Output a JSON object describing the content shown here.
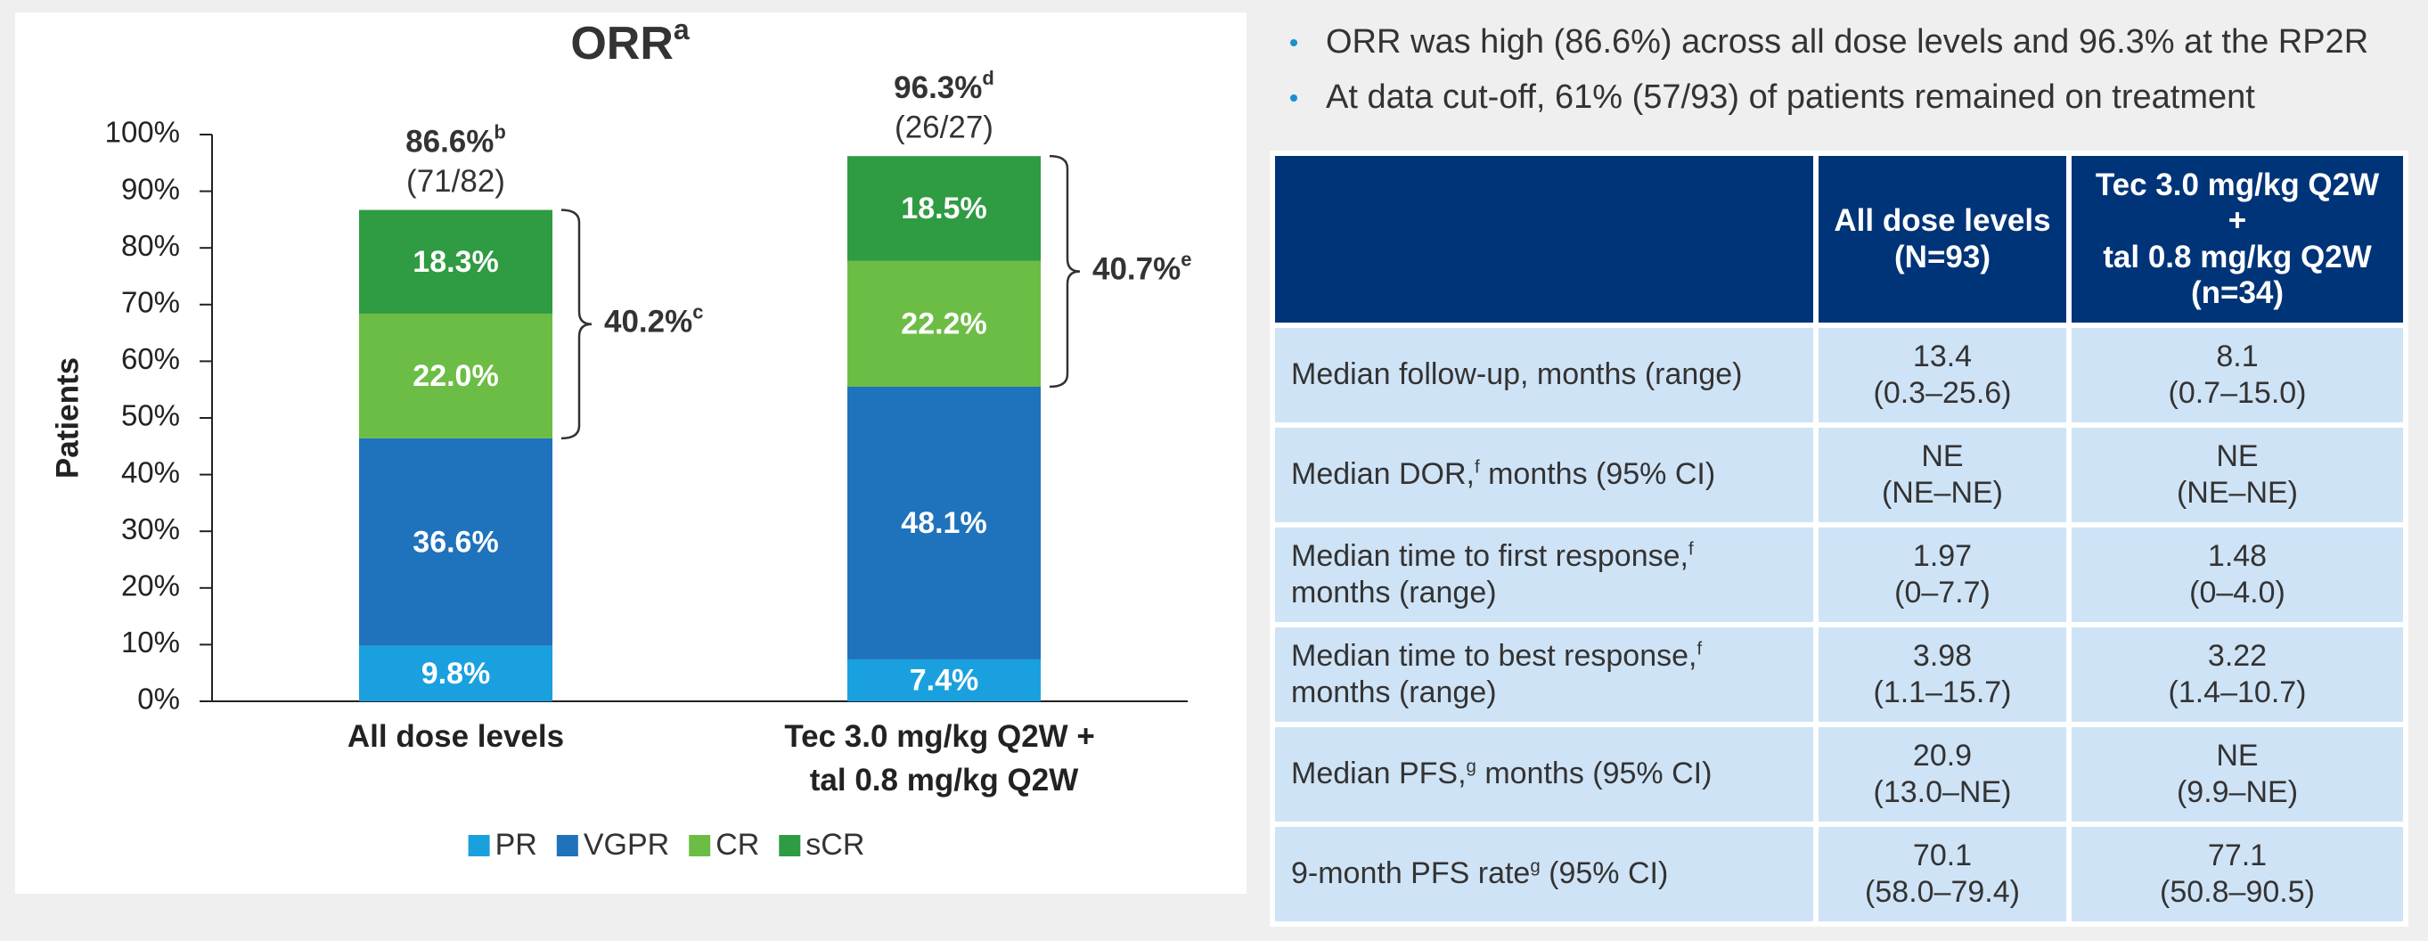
{
  "chart_data": {
    "type": "stacked_bar",
    "title": "ORR",
    "title_note": "a",
    "ylabel": "Patients",
    "categories": [
      "All dose levels",
      "Tec 3.0 mg/kg Q2W +\ntal 0.8 mg/kg Q2W"
    ],
    "series": [
      {
        "name": "PR",
        "color": "#1aa0de",
        "values": [
          9.8,
          7.4
        ],
        "value_labels": [
          "9.8%",
          "7.4%"
        ]
      },
      {
        "name": "VGPR",
        "color": "#1f72bc",
        "values": [
          36.6,
          48.1
        ],
        "value_labels": [
          "36.6%",
          "48.1%"
        ]
      },
      {
        "name": "CR",
        "color": "#6cbd45",
        "values": [
          22.0,
          22.2
        ],
        "value_labels": [
          "22.0%",
          "22.2%"
        ]
      },
      {
        "name": "sCR",
        "color": "#2f9b42",
        "values": [
          18.3,
          18.5
        ],
        "value_labels": [
          "18.3%",
          "18.5%"
        ]
      }
    ],
    "ylim": [
      0,
      100
    ],
    "yticks": [
      {
        "value": 0,
        "label": "0%"
      },
      {
        "value": 10,
        "label": "10%"
      },
      {
        "value": 20,
        "label": "20%"
      },
      {
        "value": 30,
        "label": "30%"
      },
      {
        "value": 40,
        "label": "40%"
      },
      {
        "value": 50,
        "label": "50%"
      },
      {
        "value": 60,
        "label": "60%"
      },
      {
        "value": 70,
        "label": "70%"
      },
      {
        "value": 80,
        "label": "80%"
      },
      {
        "value": 90,
        "label": "90%"
      },
      {
        "value": 100,
        "label": "100%"
      }
    ],
    "totals": [
      {
        "text": "86.6%",
        "note": "b",
        "sub": "(71/82)"
      },
      {
        "text": "96.3%",
        "note": "d",
        "sub": "(26/27)"
      }
    ],
    "brackets": [
      {
        "text": "40.2%",
        "note": "c"
      },
      {
        "text": "40.7%",
        "note": "e"
      }
    ],
    "legend": "bottom"
  },
  "bullets": [
    "ORR was high (86.6%) across all dose levels and 96.3% at the RP2R",
    "At data cut-off, 61% (57/93) of patients remained on treatment"
  ],
  "table": {
    "header": [
      [
        "All dose levels",
        "(N=93)"
      ],
      [
        "Tec 3.0 mg/kg Q2W",
        "+",
        "tal 0.8 mg/kg Q2W",
        "(n=34)"
      ]
    ],
    "rows": [
      {
        "label": [
          "Median follow-up, months (range)"
        ],
        "cells": [
          [
            "13.4",
            "(0.3–25.6)"
          ],
          [
            "8.1",
            "(0.7–15.0)"
          ]
        ]
      },
      {
        "label": [
          "Median DOR,",
          "f",
          " months (95% CI)"
        ],
        "cells": [
          [
            "NE",
            "(NE–NE)"
          ],
          [
            "NE",
            "(NE–NE)"
          ]
        ]
      },
      {
        "label": [
          "Median time to first response,",
          "f",
          " months (range)"
        ],
        "cells": [
          [
            "1.97",
            "(0–7.7)"
          ],
          [
            "1.48",
            "(0–4.0)"
          ]
        ]
      },
      {
        "label": [
          "Median time to best response,",
          "f",
          " months (range)"
        ],
        "cells": [
          [
            "3.98",
            "(1.1–15.7)"
          ],
          [
            "3.22",
            "(1.4–10.7)"
          ]
        ]
      },
      {
        "label": [
          "Median PFS,",
          "g",
          " months (95% CI)"
        ],
        "cells": [
          [
            "20.9",
            "(13.0–NE)"
          ],
          [
            "NE",
            "(9.9–NE)"
          ]
        ]
      },
      {
        "label": [
          "9-month PFS rate",
          "g",
          " (95% CI)"
        ],
        "cells": [
          [
            "70.1",
            "(58.0–79.4)"
          ],
          [
            "77.1",
            "(50.8–90.5)"
          ]
        ]
      }
    ]
  }
}
